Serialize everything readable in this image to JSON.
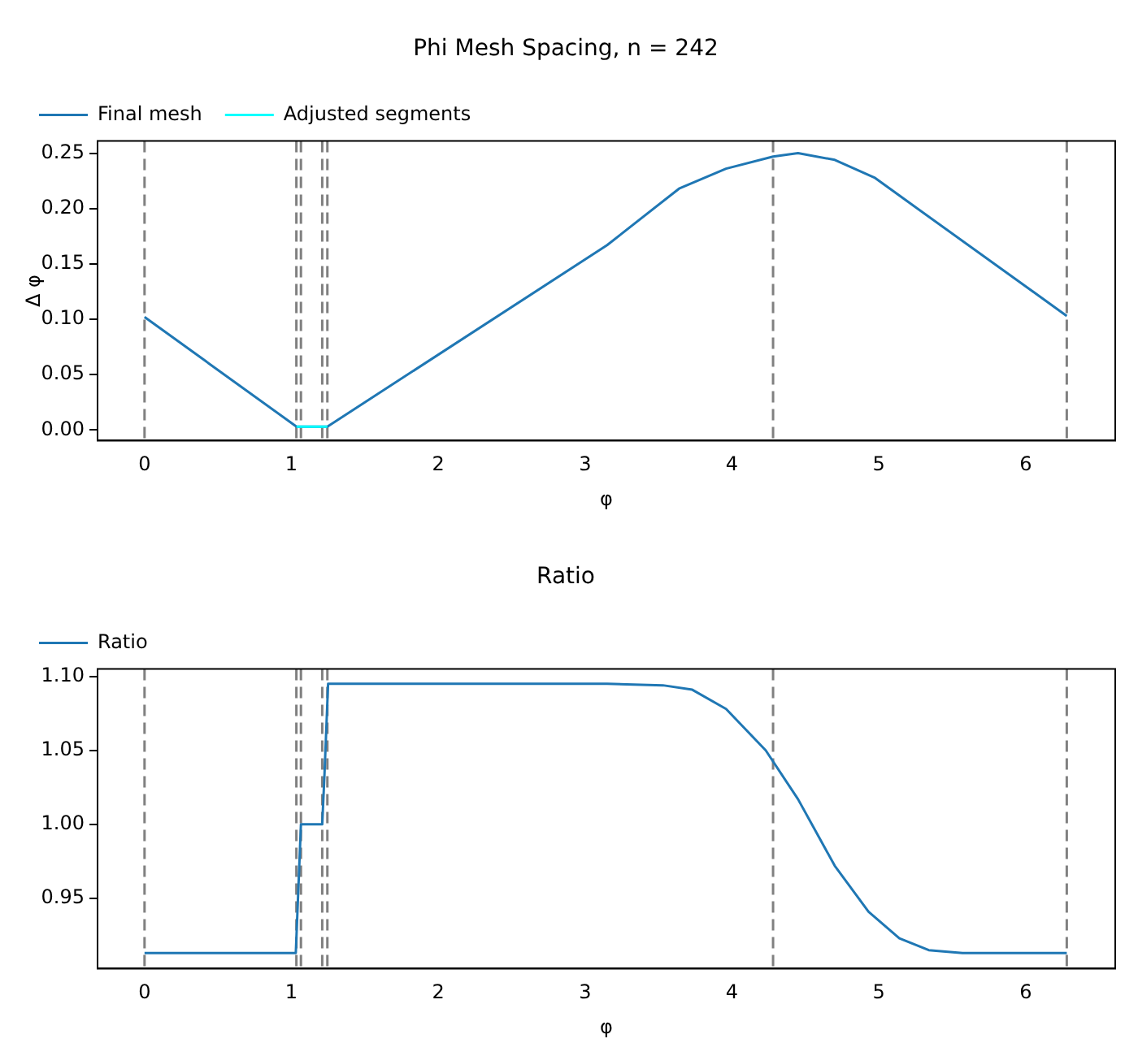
{
  "chart_data": [
    {
      "type": "line",
      "title": "Phi Mesh Spacing, n = 242",
      "xlabel": "φ",
      "ylabel": "Δ φ",
      "series": [
        {
          "name": "Final mesh",
          "color": "#1f77b4",
          "x": [
            0,
            1.035,
            1.245,
            3.15,
            3.64,
            3.96,
            4.28,
            4.45,
            4.7,
            4.97,
            5.2,
            6.28
          ],
          "values": [
            0.102,
            0.003,
            0.003,
            0.167,
            0.218,
            0.236,
            0.247,
            0.25,
            0.244,
            0.228,
            0.206,
            0.103
          ]
        },
        {
          "name": "Adjusted segments",
          "color": "#00ffff",
          "x": [
            1.035,
            1.245
          ],
          "values": [
            0.003,
            0.003
          ]
        }
      ],
      "xlim": [
        -0.32,
        6.61
      ],
      "xticks": [
        0,
        1,
        2,
        3,
        4,
        5,
        6
      ],
      "ylim": [
        -0.0096,
        0.261
      ],
      "yticks": [
        {
          "value": 0,
          "label": "0.00"
        },
        {
          "value": 0.05,
          "label": "0.05"
        },
        {
          "value": 0.1,
          "label": "0.10"
        },
        {
          "value": 0.15,
          "label": "0.15"
        },
        {
          "value": 0.2,
          "label": "0.20"
        },
        {
          "value": 0.25,
          "label": "0.25"
        }
      ],
      "ref_lines": [
        {
          "axis": "x",
          "value": 0,
          "color": "#808080",
          "line_style": "dashed"
        },
        {
          "axis": "x",
          "value": 1.034,
          "color": "#808080",
          "line_style": "dashed"
        },
        {
          "axis": "x",
          "value": 1.065,
          "color": "#808080",
          "line_style": "dashed"
        },
        {
          "axis": "x",
          "value": 1.21,
          "color": "#808080",
          "line_style": "dashed"
        },
        {
          "axis": "x",
          "value": 1.245,
          "color": "#808080",
          "line_style": "dashed"
        },
        {
          "axis": "x",
          "value": 4.28,
          "color": "#808080",
          "line_style": "dashed"
        },
        {
          "axis": "x",
          "value": 6.28,
          "color": "#808080",
          "line_style": "dashed"
        }
      ],
      "legend": "top",
      "marker": "none",
      "line_style": "solid",
      "grid": false
    },
    {
      "type": "line",
      "title": "Ratio",
      "xlabel": "φ",
      "series": [
        {
          "name": "Ratio",
          "color": "#1f77b4",
          "x": [
            0,
            1.03,
            1.065,
            1.21,
            1.225,
            1.25,
            3.15,
            3.53,
            3.73,
            3.96,
            4.23,
            4.45,
            4.7,
            4.93,
            5.14,
            5.34,
            5.57,
            6.28
          ],
          "values": [
            0.913,
            0.913,
            1.0,
            1.0,
            1.033,
            1.095,
            1.095,
            1.094,
            1.091,
            1.078,
            1.05,
            1.017,
            0.972,
            0.941,
            0.923,
            0.915,
            0.913,
            0.913
          ]
        }
      ],
      "xlim": [
        -0.32,
        6.61
      ],
      "xticks": [
        0,
        1,
        2,
        3,
        4,
        5,
        6
      ],
      "ylim": [
        0.9025,
        1.105
      ],
      "yticks": [
        {
          "value": 0.95,
          "label": "0.95"
        },
        {
          "value": 1,
          "label": "1.00"
        },
        {
          "value": 1.05,
          "label": "1.05"
        },
        {
          "value": 1.1,
          "label": "1.10"
        }
      ],
      "ref_lines": [
        {
          "axis": "x",
          "value": 0,
          "color": "#808080",
          "line_style": "dashed"
        },
        {
          "axis": "x",
          "value": 1.034,
          "color": "#808080",
          "line_style": "dashed"
        },
        {
          "axis": "x",
          "value": 1.065,
          "color": "#808080",
          "line_style": "dashed"
        },
        {
          "axis": "x",
          "value": 1.21,
          "color": "#808080",
          "line_style": "dashed"
        },
        {
          "axis": "x",
          "value": 1.245,
          "color": "#808080",
          "line_style": "dashed"
        },
        {
          "axis": "x",
          "value": 4.28,
          "color": "#808080",
          "line_style": "dashed"
        },
        {
          "axis": "x",
          "value": 6.28,
          "color": "#808080",
          "line_style": "dashed"
        }
      ],
      "legend": "top",
      "marker": "none",
      "line_style": "solid",
      "grid": false
    }
  ]
}
